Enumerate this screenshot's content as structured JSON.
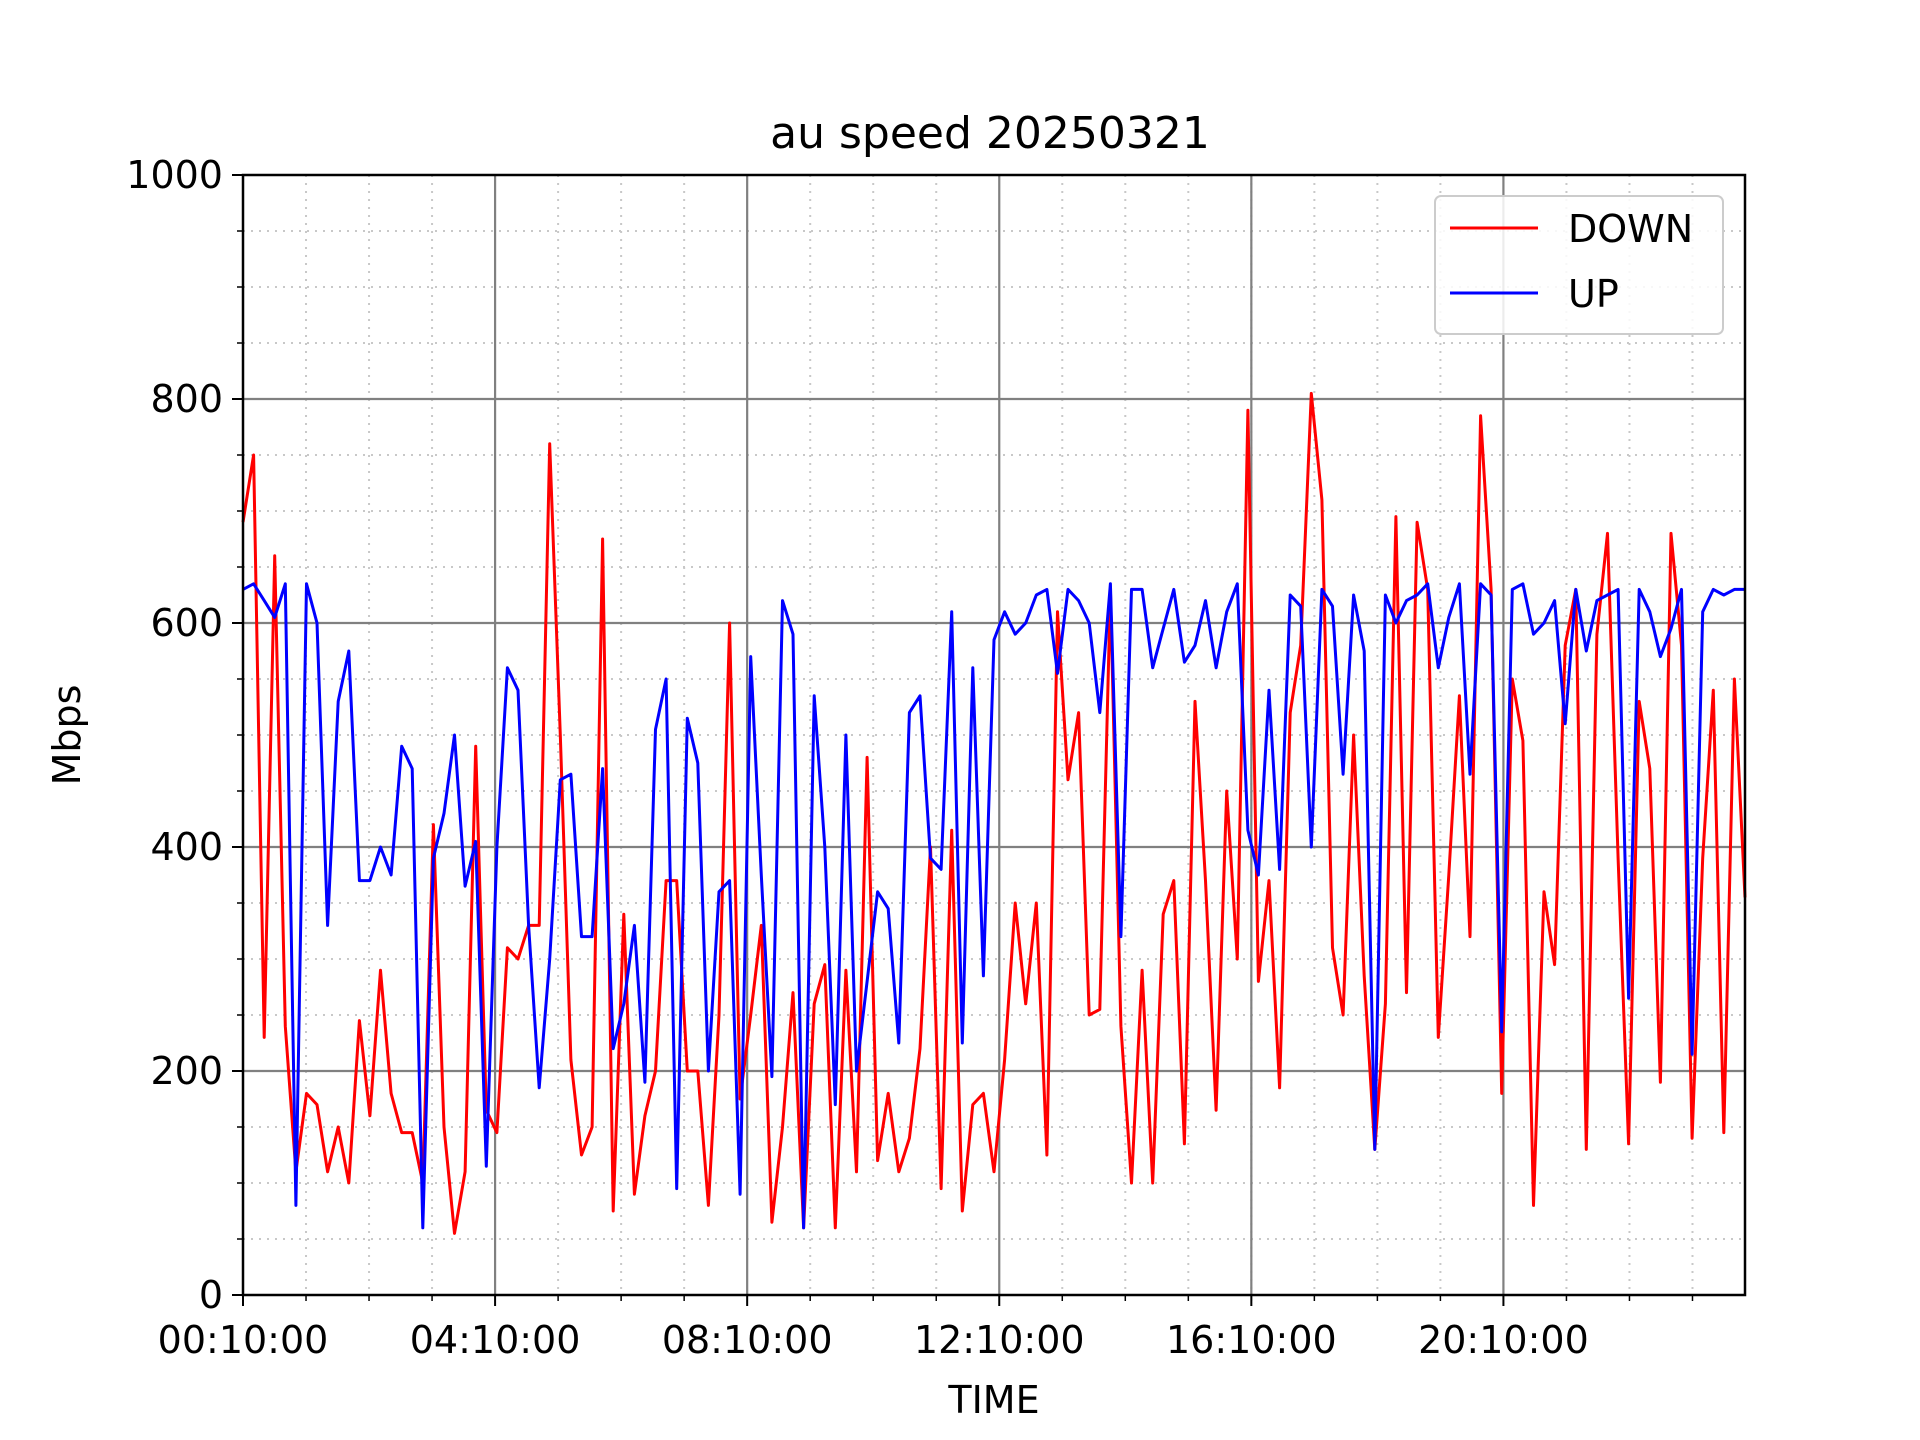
{
  "chart_data": {
    "type": "line",
    "title": "au speed 20250321",
    "xlabel": "TIME",
    "ylabel": "Mbps",
    "ylim": [
      0,
      1000
    ],
    "y_ticks": [
      0,
      200,
      400,
      600,
      800,
      1000
    ],
    "x_range_hours": [
      0.1667,
      24.0
    ],
    "x_ticks": [
      {
        "hour": 0.1667,
        "label": "00:10:00"
      },
      {
        "hour": 4.1667,
        "label": "04:10:00"
      },
      {
        "hour": 8.1667,
        "label": "08:10:00"
      },
      {
        "hour": 12.1667,
        "label": "12:10:00"
      },
      {
        "hour": 16.1667,
        "label": "16:10:00"
      },
      {
        "hour": 20.1667,
        "label": "20:10:00"
      }
    ],
    "grid": true,
    "legend_position": "top-right",
    "x_interval_minutes": 10,
    "series": [
      {
        "name": "DOWN",
        "color": "#ff0000",
        "values": [
          690,
          750,
          230,
          660,
          240,
          110,
          180,
          170,
          110,
          150,
          100,
          245,
          160,
          290,
          180,
          145,
          145,
          100,
          420,
          150,
          55,
          110,
          490,
          165,
          145,
          310,
          300,
          330,
          330,
          760,
          500,
          210,
          125,
          150,
          675,
          75,
          340,
          90,
          160,
          200,
          370,
          370,
          200,
          200,
          80,
          250,
          600,
          175,
          250,
          330,
          65,
          150,
          270,
          60,
          260,
          295,
          60,
          290,
          110,
          480,
          120,
          180,
          110,
          140,
          220,
          400,
          95,
          415,
          75,
          170,
          180,
          110,
          210,
          350,
          260,
          350,
          125,
          610,
          460,
          520,
          250,
          255,
          630,
          240,
          100,
          290,
          100,
          340,
          370,
          135,
          530,
          370,
          165,
          450,
          300,
          790,
          280,
          370,
          185,
          520,
          580,
          805,
          710,
          310,
          250,
          500,
          285,
          130,
          260,
          695,
          270,
          690,
          630,
          230,
          375,
          535,
          320,
          785,
          630,
          180,
          550,
          495,
          80,
          360,
          295,
          580,
          630,
          130,
          590,
          680,
          390,
          135,
          530,
          470,
          190,
          680,
          580,
          140,
          390,
          540,
          145,
          550,
          355
        ]
      },
      {
        "name": "UP",
        "color": "#0000ff",
        "values": [
          630,
          635,
          620,
          605,
          635,
          80,
          635,
          600,
          330,
          530,
          575,
          370,
          370,
          400,
          375,
          490,
          470,
          60,
          390,
          430,
          500,
          365,
          405,
          115,
          400,
          560,
          540,
          330,
          185,
          300,
          460,
          465,
          320,
          320,
          470,
          220,
          260,
          330,
          190,
          505,
          550,
          95,
          515,
          475,
          200,
          360,
          370,
          90,
          570,
          375,
          195,
          620,
          590,
          60,
          535,
          400,
          170,
          500,
          200,
          280,
          360,
          345,
          225,
          520,
          535,
          390,
          380,
          610,
          225,
          560,
          285,
          585,
          610,
          590,
          600,
          625,
          630,
          555,
          630,
          620,
          600,
          520,
          635,
          320,
          630,
          630,
          560,
          595,
          630,
          565,
          580,
          620,
          560,
          610,
          635,
          415,
          375,
          540,
          380,
          625,
          615,
          400,
          630,
          615,
          465,
          625,
          575,
          130,
          625,
          600,
          620,
          625,
          635,
          560,
          605,
          635,
          465,
          635,
          625,
          235,
          630,
          635,
          590,
          600,
          620,
          510,
          630,
          575,
          620,
          625,
          630,
          265,
          630,
          610,
          570,
          595,
          630,
          215,
          610,
          630,
          625,
          630,
          630
        ]
      }
    ]
  }
}
